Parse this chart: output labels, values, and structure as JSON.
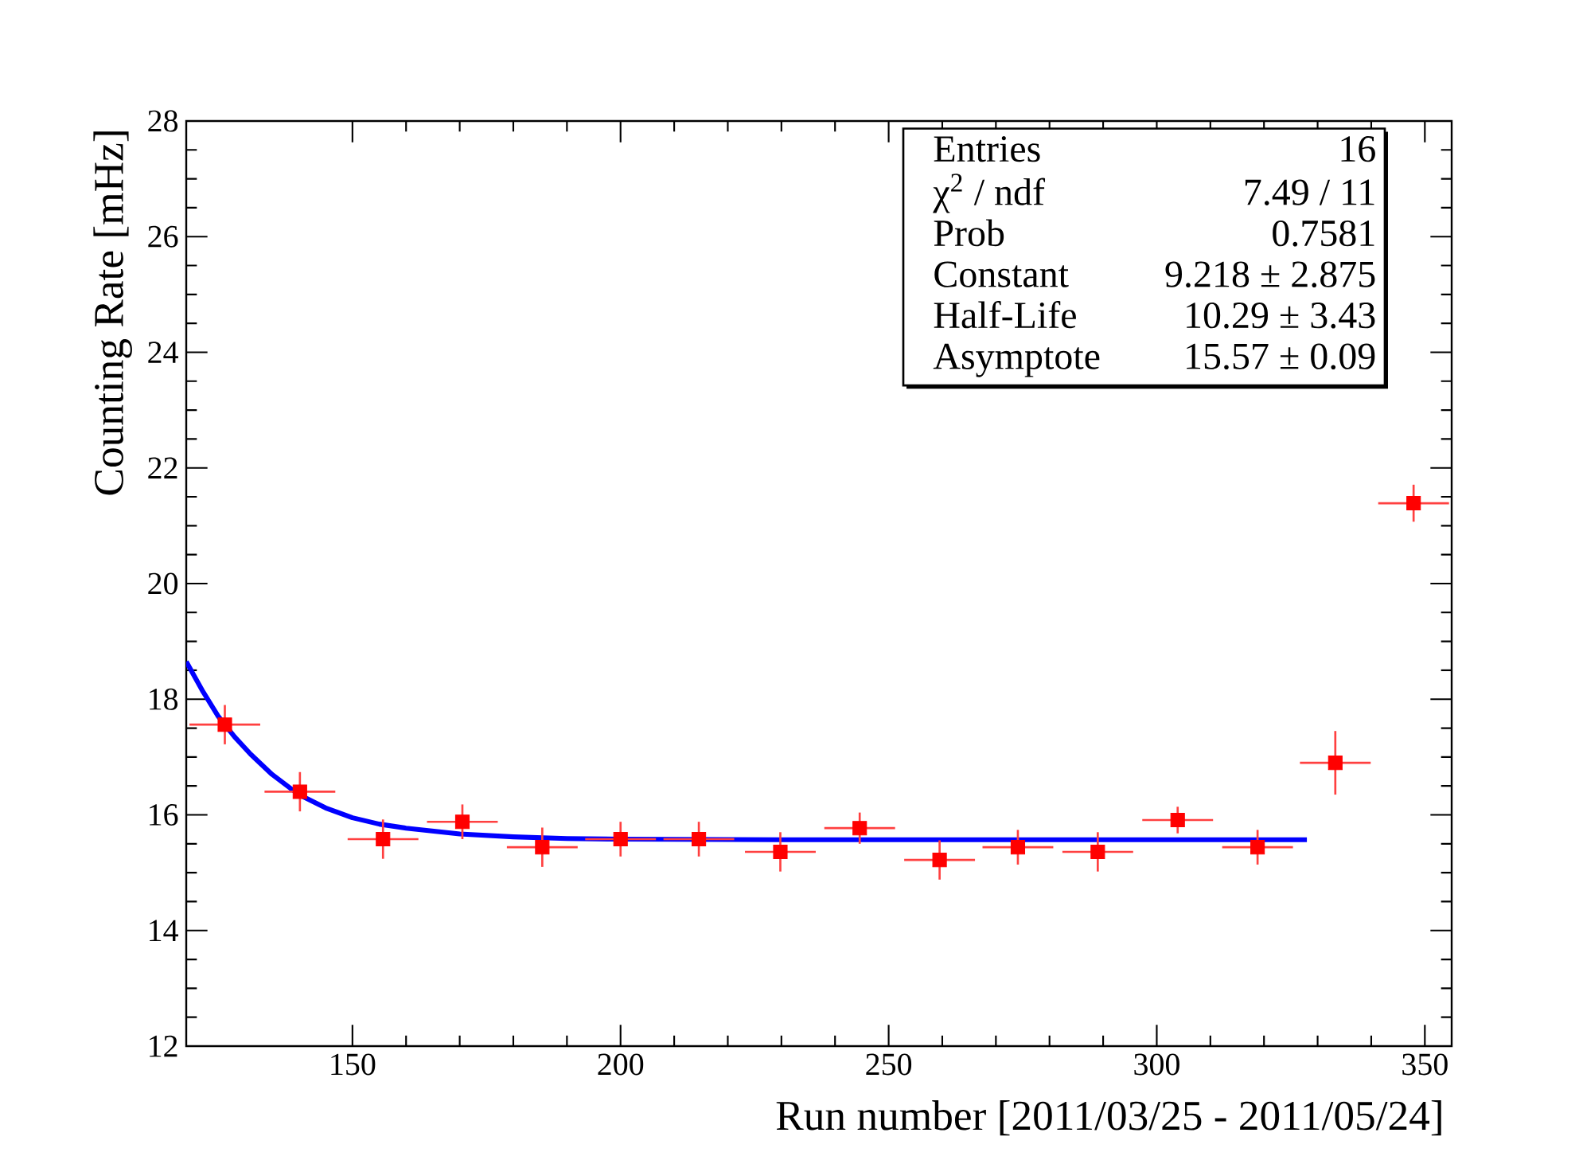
{
  "chart_data": {
    "type": "scatter",
    "xlabel": "Run number [2011/03/25 - 2011/05/24]",
    "ylabel": "Counting Rate [mHz]",
    "xlim": [
      119,
      355
    ],
    "ylim": [
      12,
      28
    ],
    "xticks": [
      150,
      200,
      250,
      300,
      350
    ],
    "yticks": [
      12,
      14,
      16,
      18,
      20,
      22,
      24,
      26,
      28
    ],
    "grid": false,
    "annotations": [
      "Entries",
      "16",
      "χ$^{2}$ / ndf",
      "7.49 / 11",
      "Prob",
      "0.7581",
      "Constant",
      "9.218 ± 2.875",
      "Half-Life",
      "10.29 ± 3.43",
      "Asymptote",
      "15.57 ± 0.09"
    ],
    "series": [
      {
        "marker": "square",
        "color": "#ff0000",
        "x": [
          126.2,
          140.2,
          155.7,
          170.5,
          185.4,
          200,
          214.6,
          229.8,
          244.6,
          259.5,
          274.1,
          289,
          303.9,
          318.8,
          333.3,
          347.9
        ],
        "values": [
          17.56,
          16.4,
          15.58,
          15.88,
          15.44,
          15.58,
          15.58,
          15.36,
          15.77,
          15.22,
          15.44,
          15.36,
          15.91,
          15.44,
          16.9,
          21.39
        ],
        "errors": [
          0.34,
          0.34,
          0.34,
          0.3,
          0.34,
          0.3,
          0.3,
          0.34,
          0.27,
          0.34,
          0.3,
          0.34,
          0.23,
          0.3,
          0.55,
          0.32
        ],
        "xerrors": [
          6.6,
          6.6,
          6.6,
          6.6,
          6.6,
          6.6,
          6.6,
          6.6,
          6.6,
          6.6,
          6.6,
          6.6,
          6.6,
          6.6,
          6.6,
          6.6
        ]
      },
      {
        "type": "line",
        "color": "#0000ff",
        "x": [
          119,
          122,
          125,
          128,
          131,
          135,
          140,
          145,
          150,
          155,
          160,
          170,
          180,
          190,
          200,
          230,
          280,
          328
        ],
        "values": [
          18.65,
          18.15,
          17.7,
          17.35,
          17.05,
          16.7,
          16.35,
          16.12,
          15.95,
          15.84,
          15.77,
          15.67,
          15.62,
          15.59,
          15.58,
          15.57,
          15.57,
          15.57
        ]
      }
    ]
  }
}
